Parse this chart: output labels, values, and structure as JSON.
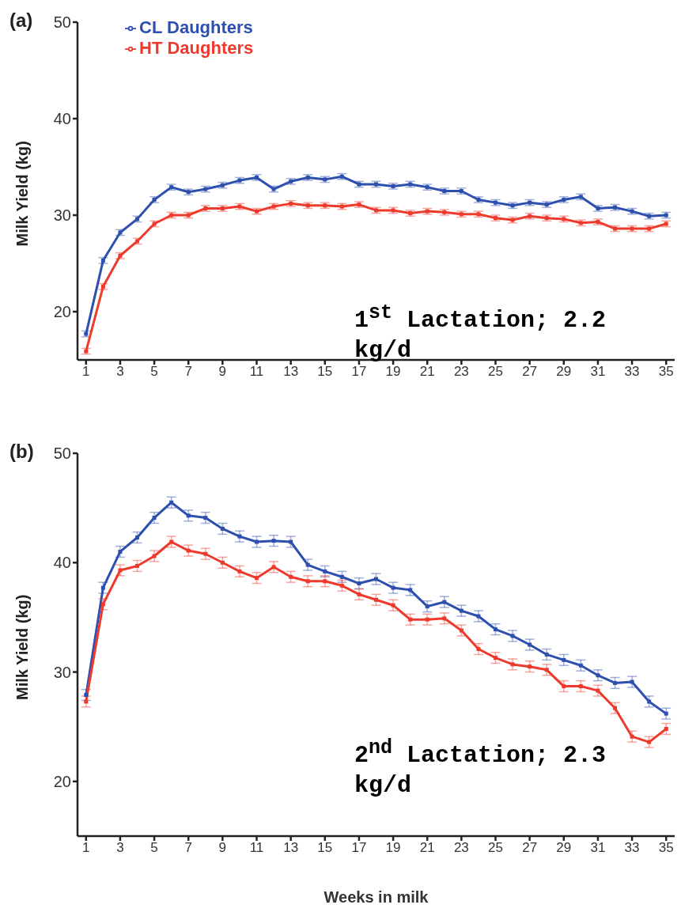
{
  "chart_data": [
    {
      "type": "line",
      "title": "(a)",
      "ylabel": "Milk Yield (kg)",
      "x": [
        1,
        2,
        3,
        4,
        5,
        6,
        7,
        8,
        9,
        10,
        11,
        12,
        13,
        14,
        15,
        16,
        17,
        18,
        19,
        20,
        21,
        22,
        23,
        24,
        25,
        26,
        27,
        28,
        29,
        30,
        31,
        32,
        33,
        34,
        35
      ],
      "xlim": [
        0.5,
        35.5
      ],
      "xticks": [
        1,
        3,
        5,
        7,
        9,
        11,
        13,
        15,
        17,
        19,
        21,
        23,
        25,
        27,
        29,
        31,
        33,
        35
      ],
      "ylim": [
        15,
        50
      ],
      "yticks": [
        20,
        30,
        40,
        50
      ],
      "legend": "top left",
      "marker": "square",
      "line_style": "solid",
      "grid": false,
      "annotations": [
        "1$^{st}$ Lactation; 2.2 kg/d"
      ],
      "series": [
        {
          "name": "CL Daughters",
          "color": "#2d4fae",
          "values": [
            17.7,
            25.3,
            28.2,
            29.6,
            31.6,
            32.9,
            32.4,
            32.7,
            33.1,
            33.6,
            33.9,
            32.7,
            33.5,
            33.9,
            33.7,
            34.0,
            33.2,
            33.2,
            33.0,
            33.2,
            32.9,
            32.5,
            32.5,
            31.6,
            31.3,
            31.0,
            31.3,
            31.1,
            31.6,
            31.9,
            30.7,
            30.8,
            30.4,
            29.9,
            30.0
          ],
          "errors": [
            0.3,
            0.3,
            0.3,
            0.3,
            0.3,
            0.3,
            0.3,
            0.3,
            0.3,
            0.3,
            0.3,
            0.3,
            0.3,
            0.3,
            0.3,
            0.3,
            0.3,
            0.3,
            0.3,
            0.3,
            0.3,
            0.3,
            0.3,
            0.3,
            0.3,
            0.3,
            0.3,
            0.3,
            0.3,
            0.3,
            0.3,
            0.3,
            0.3,
            0.3,
            0.3
          ]
        },
        {
          "name": "HT Daughters",
          "color": "#ee3a2c",
          "values": [
            15.9,
            22.6,
            25.8,
            27.3,
            29.1,
            30.0,
            30.0,
            30.7,
            30.7,
            30.9,
            30.4,
            30.9,
            31.2,
            31.0,
            31.0,
            30.9,
            31.1,
            30.5,
            30.5,
            30.2,
            30.4,
            30.3,
            30.1,
            30.1,
            29.7,
            29.5,
            29.9,
            29.7,
            29.6,
            29.2,
            29.3,
            28.6,
            28.6,
            28.6,
            29.1
          ],
          "errors": [
            0.3,
            0.3,
            0.3,
            0.3,
            0.3,
            0.3,
            0.3,
            0.3,
            0.3,
            0.3,
            0.3,
            0.3,
            0.3,
            0.3,
            0.3,
            0.3,
            0.3,
            0.3,
            0.3,
            0.3,
            0.3,
            0.3,
            0.3,
            0.3,
            0.3,
            0.3,
            0.3,
            0.3,
            0.3,
            0.3,
            0.3,
            0.3,
            0.3,
            0.3,
            0.3
          ]
        }
      ]
    },
    {
      "type": "line",
      "title": "(b)",
      "ylabel": "Milk Yield (kg)",
      "xlabel": "Weeks in milk",
      "x": [
        1,
        2,
        3,
        4,
        5,
        6,
        7,
        8,
        9,
        10,
        11,
        12,
        13,
        14,
        15,
        16,
        17,
        18,
        19,
        20,
        21,
        22,
        23,
        24,
        25,
        26,
        27,
        28,
        29,
        30,
        31,
        32,
        33,
        34,
        35
      ],
      "xlim": [
        0.5,
        35.5
      ],
      "xticks": [
        1,
        3,
        5,
        7,
        9,
        11,
        13,
        15,
        17,
        19,
        21,
        23,
        25,
        27,
        29,
        31,
        33,
        35
      ],
      "ylim": [
        15,
        50
      ],
      "yticks": [
        20,
        30,
        40,
        50
      ],
      "marker": "square",
      "line_style": "solid",
      "grid": false,
      "annotations": [
        "2$^{nd}$ Lactation; 2.3 kg/d"
      ],
      "series": [
        {
          "color": "#2d4fae",
          "values": [
            27.9,
            37.7,
            41.0,
            42.3,
            44.1,
            45.5,
            44.3,
            44.1,
            43.1,
            42.4,
            41.9,
            42.0,
            41.9,
            39.8,
            39.2,
            38.7,
            38.1,
            38.5,
            37.7,
            37.5,
            36.0,
            36.4,
            35.6,
            35.1,
            33.9,
            33.3,
            32.5,
            31.6,
            31.1,
            30.6,
            29.7,
            29.0,
            29.1,
            27.3,
            26.2
          ],
          "errors": [
            0.5,
            0.5,
            0.5,
            0.5,
            0.5,
            0.5,
            0.5,
            0.5,
            0.5,
            0.5,
            0.5,
            0.5,
            0.5,
            0.5,
            0.5,
            0.5,
            0.5,
            0.5,
            0.5,
            0.5,
            0.5,
            0.5,
            0.5,
            0.5,
            0.5,
            0.5,
            0.5,
            0.5,
            0.5,
            0.5,
            0.5,
            0.5,
            0.5,
            0.5,
            0.5
          ]
        },
        {
          "color": "#ee3a2c",
          "values": [
            27.3,
            36.2,
            39.3,
            39.7,
            40.6,
            41.9,
            41.1,
            40.8,
            40.0,
            39.2,
            38.6,
            39.6,
            38.7,
            38.3,
            38.3,
            37.9,
            37.1,
            36.6,
            36.1,
            34.8,
            34.8,
            34.9,
            33.8,
            32.1,
            31.3,
            30.7,
            30.5,
            30.2,
            28.7,
            28.7,
            28.3,
            26.7,
            24.1,
            23.6,
            24.8
          ],
          "errors": [
            0.5,
            0.5,
            0.5,
            0.5,
            0.5,
            0.5,
            0.5,
            0.5,
            0.5,
            0.5,
            0.5,
            0.5,
            0.5,
            0.5,
            0.5,
            0.5,
            0.5,
            0.5,
            0.5,
            0.5,
            0.5,
            0.5,
            0.5,
            0.5,
            0.5,
            0.5,
            0.5,
            0.5,
            0.5,
            0.5,
            0.5,
            0.5,
            0.5,
            0.5,
            0.5
          ]
        }
      ]
    }
  ]
}
